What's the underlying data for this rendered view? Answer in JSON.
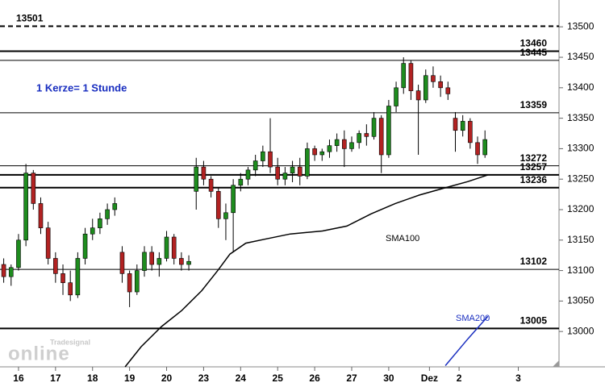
{
  "chart_data": {
    "type": "candlestick",
    "annotations": [
      "1 Kerze= 1 Stunde",
      "SMA100",
      "SMA200"
    ],
    "watermark": [
      "Tradesignal",
      "online"
    ],
    "xlim": [
      -0.5,
      14.6
    ],
    "ylim": [
      12942,
      13544
    ],
    "xticks": [
      {
        "value": 0,
        "label": "16"
      },
      {
        "value": 1,
        "label": "17"
      },
      {
        "value": 2,
        "label": "18"
      },
      {
        "value": 3,
        "label": "19"
      },
      {
        "value": 4,
        "label": "20"
      },
      {
        "value": 5,
        "label": "23"
      },
      {
        "value": 6,
        "label": "24"
      },
      {
        "value": 7,
        "label": "25"
      },
      {
        "value": 8,
        "label": "26"
      },
      {
        "value": 9,
        "label": "27"
      },
      {
        "value": 10,
        "label": "30"
      },
      {
        "value": 11.1,
        "label": "Dez"
      },
      {
        "value": 11.9,
        "label": "2"
      },
      {
        "value": 13.5,
        "label": "3"
      }
    ],
    "yticks": [
      13000,
      13050,
      13100,
      13150,
      13200,
      13250,
      13300,
      13350,
      13400,
      13450,
      13500
    ],
    "up_color": "#1e8c1e",
    "down_color": "#b22222",
    "candles": {
      "x": [
        -0.4,
        -0.2,
        0,
        0.2,
        0.4,
        0.6,
        0.8,
        1,
        1.2,
        1.4,
        1.6,
        1.8,
        2,
        2.2,
        2.4,
        2.6,
        2.8,
        3,
        3.2,
        3.4,
        3.6,
        3.8,
        4,
        4.2,
        4.4,
        4.6,
        4.8,
        5,
        5.2,
        5.4,
        5.6,
        5.8,
        6,
        6.2,
        6.4,
        6.6,
        6.8,
        7,
        7.2,
        7.4,
        7.6,
        7.8,
        8,
        8.2,
        8.4,
        8.6,
        8.8,
        9,
        9.2,
        9.4,
        9.6,
        9.8,
        10,
        10.2,
        10.4,
        10.6,
        10.8,
        11,
        11.2,
        11.4,
        11.6,
        11.8,
        12,
        12.2,
        12.4,
        12.6
      ],
      "open": [
        13110,
        13090,
        13105,
        13150,
        13260,
        13210,
        13170,
        13120,
        13095,
        13080,
        13060,
        13120,
        13160,
        13170,
        13185,
        13200,
        13130,
        13095,
        13065,
        13100,
        13130,
        13110,
        13120,
        13155,
        13120,
        13110,
        13230,
        13270,
        13250,
        13230,
        13185,
        13195,
        13240,
        13250,
        13265,
        13280,
        13295,
        13270,
        13250,
        13260,
        13270,
        13255,
        13300,
        13290,
        13295,
        13305,
        13315,
        13300,
        13310,
        13325,
        13320,
        13350,
        13290,
        13370,
        13400,
        13440,
        13395,
        13380,
        13420,
        13410,
        13400,
        13350,
        13330,
        13345,
        13310,
        13290
      ],
      "high": [
        13120,
        13110,
        13160,
        13275,
        13265,
        13220,
        13180,
        13130,
        13110,
        13100,
        13130,
        13170,
        13185,
        13195,
        13210,
        13220,
        13140,
        13100,
        13110,
        13140,
        13140,
        13130,
        13165,
        13160,
        13130,
        13125,
        13285,
        13280,
        13255,
        13235,
        13210,
        13250,
        13260,
        13270,
        13290,
        13305,
        13350,
        13285,
        13270,
        13280,
        13285,
        13310,
        13305,
        13300,
        13315,
        13325,
        13330,
        13320,
        13330,
        13340,
        13360,
        13355,
        13380,
        13410,
        13450,
        13445,
        13405,
        13430,
        13435,
        13420,
        13410,
        13360,
        13355,
        13350,
        13320,
        13330
      ],
      "low": [
        13080,
        13075,
        13100,
        13140,
        13200,
        13160,
        13110,
        13080,
        13060,
        13050,
        13055,
        13110,
        13150,
        13160,
        13175,
        13190,
        13080,
        13040,
        13060,
        13090,
        13100,
        13090,
        13115,
        13110,
        13100,
        13100,
        13200,
        13240,
        13220,
        13170,
        13150,
        13130,
        13230,
        13240,
        13255,
        13270,
        13260,
        13240,
        13240,
        13245,
        13240,
        13250,
        13280,
        13280,
        13285,
        13295,
        13270,
        13295,
        13300,
        13305,
        13315,
        13260,
        13285,
        13360,
        13390,
        13380,
        13290,
        13375,
        13400,
        13385,
        13380,
        13295,
        13320,
        13300,
        13275,
        13285
      ],
      "close": [
        13090,
        13105,
        13150,
        13260,
        13210,
        13170,
        13120,
        13095,
        13080,
        13060,
        13120,
        13160,
        13170,
        13185,
        13200,
        13210,
        13095,
        13065,
        13100,
        13130,
        13110,
        13120,
        13155,
        13120,
        13110,
        13115,
        13270,
        13250,
        13230,
        13185,
        13195,
        13240,
        13250,
        13265,
        13280,
        13295,
        13270,
        13250,
        13260,
        13270,
        13255,
        13300,
        13290,
        13295,
        13305,
        13315,
        13300,
        13310,
        13325,
        13320,
        13350,
        13290,
        13370,
        13400,
        13440,
        13395,
        13380,
        13420,
        13410,
        13400,
        13390,
        13330,
        13345,
        13310,
        13290,
        13315
      ]
    },
    "lines": [
      {
        "name": "SMA100",
        "color": "#000000",
        "x": [
          2.88,
          3.31,
          3.86,
          4.4,
          4.95,
          5.38,
          5.71,
          6.14,
          6.69,
          7.34,
          8.21,
          8.87,
          9.52,
          10.18,
          10.83,
          11.48,
          12.14,
          12.68
        ],
        "values": [
          12942,
          12975,
          13008,
          13034,
          13067,
          13100,
          13127,
          13145,
          13152,
          13160,
          13165,
          13173,
          13193,
          13210,
          13224,
          13235,
          13246,
          13257
        ]
      },
      {
        "name": "SMA200",
        "color": "#1a2fc0",
        "x": [
          11.53,
          12.14,
          12.68
        ],
        "values": [
          12944,
          12988,
          13025
        ]
      }
    ],
    "levels": [
      {
        "value": 13501,
        "style": "dashed",
        "label_side": "left"
      },
      {
        "value": 13460,
        "style": "thick"
      },
      {
        "value": 13445,
        "style": "thin"
      },
      {
        "value": 13359,
        "style": "thin"
      },
      {
        "value": 13272,
        "style": "thin"
      },
      {
        "value": 13257,
        "style": "thick"
      },
      {
        "value": 13236,
        "style": "thick"
      },
      {
        "value": 13102,
        "style": "thin"
      },
      {
        "value": 13005,
        "style": "thick"
      }
    ]
  }
}
